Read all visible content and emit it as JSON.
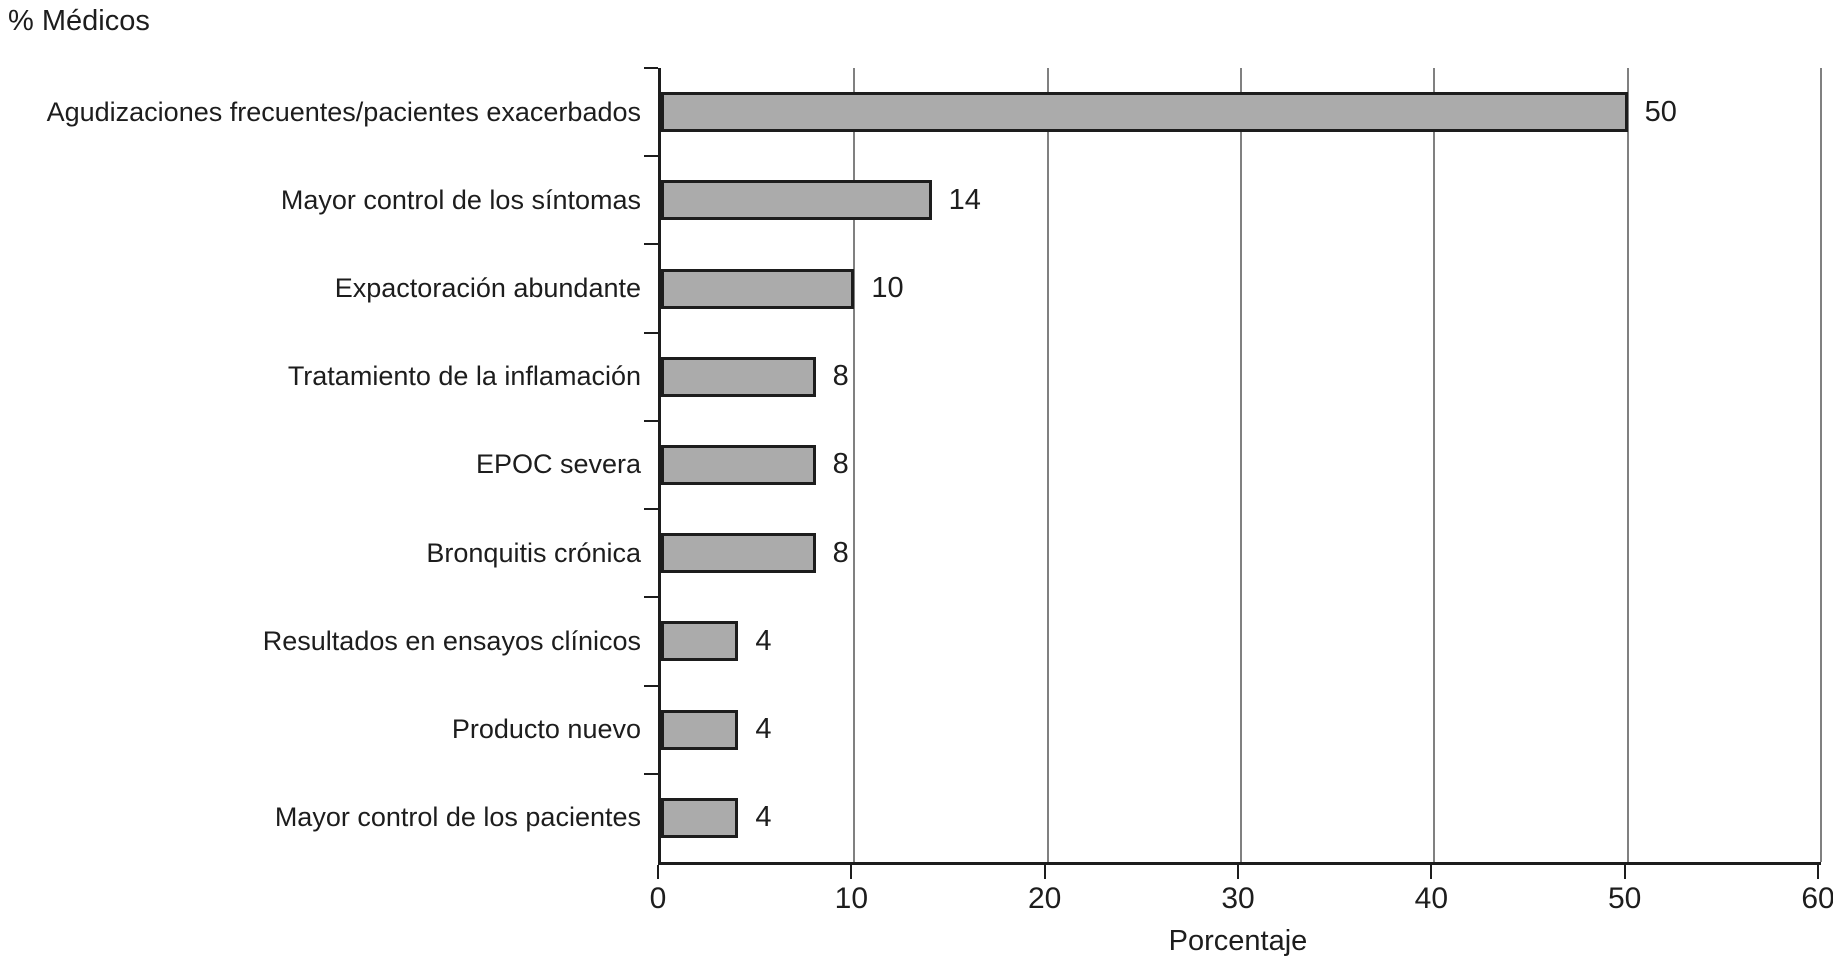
{
  "title": "% Médicos",
  "chart_data": {
    "type": "bar",
    "orientation": "horizontal",
    "title": "% Médicos",
    "categories": [
      "Agudizaciones frecuentes/pacientes exacerbados",
      "Mayor control de los síntomas",
      "Expactoración abundante",
      "Tratamiento de la inflamación",
      "EPOC severa",
      "Bronquitis crónica",
      "Resultados en ensayos clínicos",
      "Producto nuevo",
      "Mayor control de los pacientes"
    ],
    "values": [
      50,
      14,
      10,
      8,
      8,
      8,
      4,
      4,
      4
    ],
    "xlabel": "Porcentaje",
    "ylabel": "",
    "xlim": [
      0,
      60
    ],
    "xticks": [
      0,
      10,
      20,
      30,
      40,
      50,
      60
    ],
    "grid": "vertical",
    "legend": "none",
    "colors": {
      "bar_fill": "#ababab",
      "bar_border": "#1d1d1d",
      "gridline": "#808080",
      "axis": "#1d1d1d",
      "text": "#1d1d1d",
      "background": "#ffffff"
    }
  }
}
